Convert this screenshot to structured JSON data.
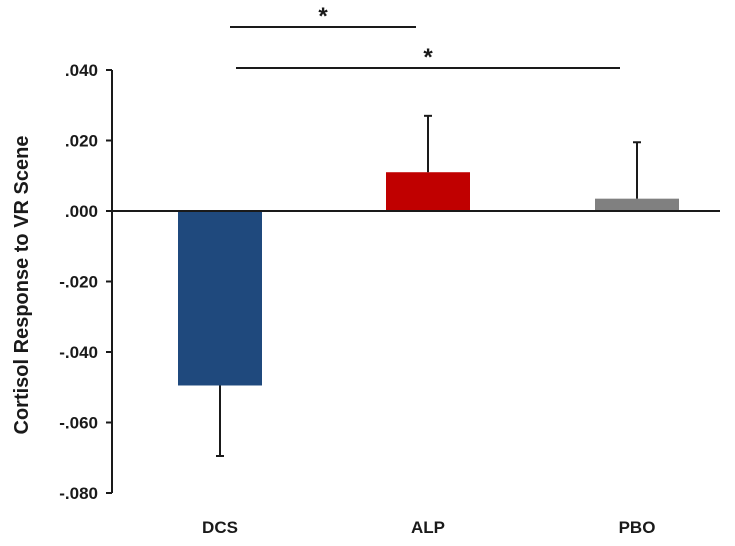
{
  "chart_data": {
    "type": "bar",
    "categories": [
      "DCS",
      "ALP",
      "PBO"
    ],
    "values": [
      -0.0495,
      0.011,
      0.0035
    ],
    "errors": [
      0.02,
      0.016,
      0.016
    ],
    "error_direction": [
      "down",
      "up",
      "up"
    ],
    "colors": [
      "#1f497d",
      "#c00000",
      "#808080"
    ],
    "ylabel": "Cortisol Response  to VR Scene",
    "xlabel": "",
    "ylim": [
      -0.08,
      0.04
    ],
    "yticks": [
      0.04,
      0.02,
      0.0,
      -0.02,
      -0.04,
      -0.06,
      -0.08
    ],
    "ytick_labels": [
      ".040",
      ".020",
      ".000",
      "-.020",
      "-.040",
      "-.060",
      "-.080"
    ],
    "grid": false,
    "significance": [
      {
        "from": "DCS",
        "to": "ALP",
        "label": "*"
      },
      {
        "from": "DCS",
        "to": "PBO",
        "label": "*"
      }
    ]
  }
}
